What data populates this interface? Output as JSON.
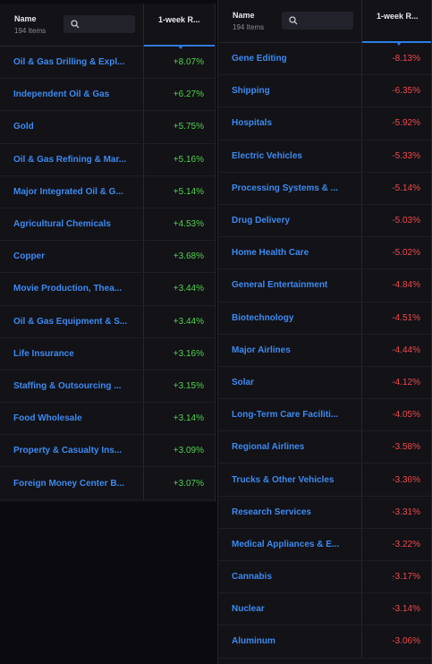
{
  "colors": {
    "positive": "#4fd24b",
    "negative": "#f0494d",
    "link": "#3d8af0",
    "accent": "#2f7be8"
  },
  "left_table": {
    "header": {
      "name": "Name",
      "count": "194 Items",
      "return": "1-week R..."
    },
    "rows": [
      {
        "name": "Oil & Gas Drilling & Expl...",
        "value": "+8.07%"
      },
      {
        "name": "Independent Oil & Gas",
        "value": "+6.27%"
      },
      {
        "name": "Gold",
        "value": "+5.75%"
      },
      {
        "name": "Oil & Gas Refining & Mar...",
        "value": "+5.16%"
      },
      {
        "name": "Major Integrated Oil & G...",
        "value": "+5.14%"
      },
      {
        "name": "Agricultural Chemicals",
        "value": "+4.53%"
      },
      {
        "name": "Copper",
        "value": "+3.68%"
      },
      {
        "name": "Movie Production, Thea...",
        "value": "+3.44%"
      },
      {
        "name": "Oil & Gas Equipment & S...",
        "value": "+3.44%"
      },
      {
        "name": "Life Insurance",
        "value": "+3.16%"
      },
      {
        "name": "Staffing & Outsourcing ...",
        "value": "+3.15%"
      },
      {
        "name": "Food Wholesale",
        "value": "+3.14%"
      },
      {
        "name": "Property & Casualty Ins...",
        "value": "+3.09%"
      },
      {
        "name": "Foreign Money Center B...",
        "value": "+3.07%"
      }
    ]
  },
  "right_table": {
    "header": {
      "name": "Name",
      "count": "194 Items",
      "return": "1-week R..."
    },
    "rows": [
      {
        "name": "Gene Editing",
        "value": "-8.13%"
      },
      {
        "name": "Shipping",
        "value": "-6.35%"
      },
      {
        "name": "Hospitals",
        "value": "-5.92%"
      },
      {
        "name": "Electric Vehicles",
        "value": "-5.33%"
      },
      {
        "name": "Processing Systems & ...",
        "value": "-5.14%"
      },
      {
        "name": "Drug Delivery",
        "value": "-5.03%"
      },
      {
        "name": "Home Health Care",
        "value": "-5.02%"
      },
      {
        "name": "General Entertainment",
        "value": "-4.84%"
      },
      {
        "name": "Biotechnology",
        "value": "-4.51%"
      },
      {
        "name": "Major Airlines",
        "value": "-4.44%"
      },
      {
        "name": "Solar",
        "value": "-4.12%"
      },
      {
        "name": "Long-Term Care Faciliti...",
        "value": "-4.05%"
      },
      {
        "name": "Regional Airlines",
        "value": "-3.58%"
      },
      {
        "name": "Trucks & Other Vehicles",
        "value": "-3.36%"
      },
      {
        "name": "Research Services",
        "value": "-3.31%"
      },
      {
        "name": "Medical Appliances & E...",
        "value": "-3.22%"
      },
      {
        "name": "Cannabis",
        "value": "-3.17%"
      },
      {
        "name": "Nuclear",
        "value": "-3.14%"
      },
      {
        "name": "Aluminum",
        "value": "-3.06%"
      }
    ]
  }
}
